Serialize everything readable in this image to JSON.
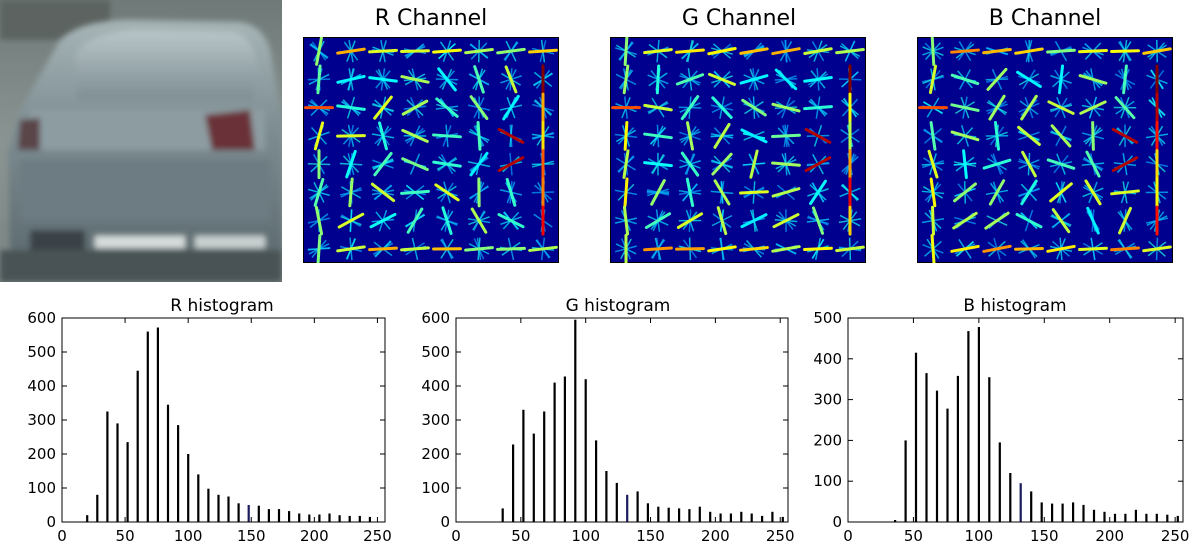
{
  "hog_panels": [
    {
      "title": "R Channel"
    },
    {
      "title": "G Channel"
    },
    {
      "title": "B Channel"
    }
  ],
  "chart_data": [
    {
      "type": "bar",
      "title": "R histogram",
      "xlim": [
        0,
        256
      ],
      "ylim": [
        0,
        600
      ],
      "xticks": [
        0,
        50,
        100,
        150,
        200,
        250
      ],
      "yticks": [
        0,
        100,
        200,
        300,
        400,
        500,
        600
      ],
      "x": [
        20,
        28,
        36,
        44,
        52,
        60,
        68,
        76,
        84,
        92,
        100,
        108,
        116,
        124,
        132,
        140,
        148,
        156,
        164,
        172,
        180,
        188,
        196,
        204,
        212,
        220,
        228,
        236,
        244
      ],
      "values": [
        20,
        80,
        325,
        290,
        235,
        445,
        560,
        572,
        345,
        285,
        200,
        140,
        98,
        80,
        75,
        55,
        50,
        48,
        38,
        38,
        32,
        25,
        22,
        22,
        25,
        20,
        18,
        18,
        15
      ]
    },
    {
      "type": "bar",
      "title": "G histogram",
      "xlim": [
        0,
        256
      ],
      "ylim": [
        0,
        600
      ],
      "xticks": [
        0,
        50,
        100,
        150,
        200,
        250
      ],
      "yticks": [
        0,
        100,
        200,
        300,
        400,
        500,
        600
      ],
      "x": [
        36,
        44,
        52,
        60,
        68,
        76,
        84,
        92,
        100,
        108,
        116,
        124,
        132,
        140,
        148,
        156,
        164,
        172,
        180,
        188,
        196,
        204,
        212,
        220,
        228,
        236,
        244,
        252
      ],
      "values": [
        40,
        228,
        330,
        260,
        325,
        410,
        428,
        595,
        420,
        240,
        150,
        115,
        80,
        90,
        55,
        45,
        42,
        40,
        38,
        45,
        30,
        25,
        25,
        30,
        25,
        18,
        30,
        15
      ]
    },
    {
      "type": "bar",
      "title": "B histogram",
      "xlim": [
        0,
        256
      ],
      "ylim": [
        0,
        500
      ],
      "xticks": [
        0,
        50,
        100,
        150,
        200,
        250
      ],
      "yticks": [
        0,
        100,
        200,
        300,
        400,
        500
      ],
      "x": [
        36,
        44,
        52,
        60,
        68,
        76,
        84,
        92,
        100,
        108,
        116,
        124,
        132,
        140,
        148,
        156,
        164,
        172,
        180,
        188,
        196,
        204,
        212,
        220,
        228,
        236,
        244,
        252
      ],
      "values": [
        5,
        200,
        415,
        365,
        322,
        278,
        358,
        468,
        478,
        355,
        195,
        120,
        95,
        75,
        48,
        45,
        45,
        48,
        42,
        30,
        25,
        20,
        20,
        30,
        20,
        20,
        18,
        15
      ]
    }
  ]
}
